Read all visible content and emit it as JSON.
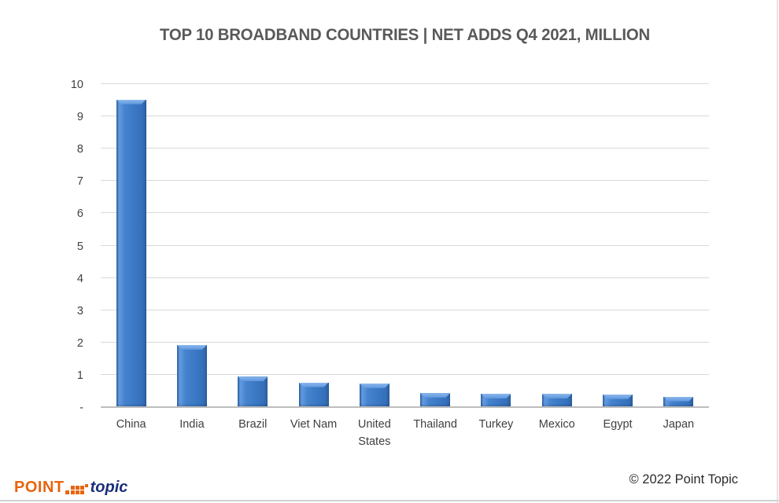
{
  "title": "TOP 10 BROADBAND COUNTRIES | NET ADDS Q4 2021, MILLION",
  "chart_data": {
    "type": "bar",
    "title": "TOP 10 BROADBAND COUNTRIES | NET ADDS Q4 2021, MILLION",
    "categories": [
      "China",
      "India",
      "Brazil",
      "Viet Nam",
      "United States",
      "Thailand",
      "Turkey",
      "Mexico",
      "Egypt",
      "Japan"
    ],
    "values": [
      9.5,
      1.9,
      0.92,
      0.74,
      0.71,
      0.41,
      0.39,
      0.39,
      0.37,
      0.3
    ],
    "xlabel": "",
    "ylabel": "",
    "ylim": [
      0,
      10
    ],
    "yticks": [
      {
        "v": 0,
        "label": "-"
      },
      {
        "v": 1,
        "label": "1"
      },
      {
        "v": 2,
        "label": "2"
      },
      {
        "v": 3,
        "label": "3"
      },
      {
        "v": 4,
        "label": "4"
      },
      {
        "v": 5,
        "label": "5"
      },
      {
        "v": 6,
        "label": "6"
      },
      {
        "v": 7,
        "label": "7"
      },
      {
        "v": 8,
        "label": "8"
      },
      {
        "v": 9,
        "label": "9"
      },
      {
        "v": 10,
        "label": "10"
      }
    ],
    "grid": true,
    "legend": false,
    "bar_color": "#3a78c4",
    "bar_edge_color": "#2b5f9f",
    "bar_highlight_color": "#8cb8ec",
    "gridline_color": "#d9d9d9",
    "axis_line_color": "#bdbdbd",
    "title_color": "#595959",
    "label_color": "#404040"
  },
  "footer": {
    "copyright": "© 2022 Point Topic",
    "logo": {
      "point": "POINT",
      "topic": "topic",
      "orange": "#e8650f",
      "navy": "#1b2e79"
    }
  }
}
